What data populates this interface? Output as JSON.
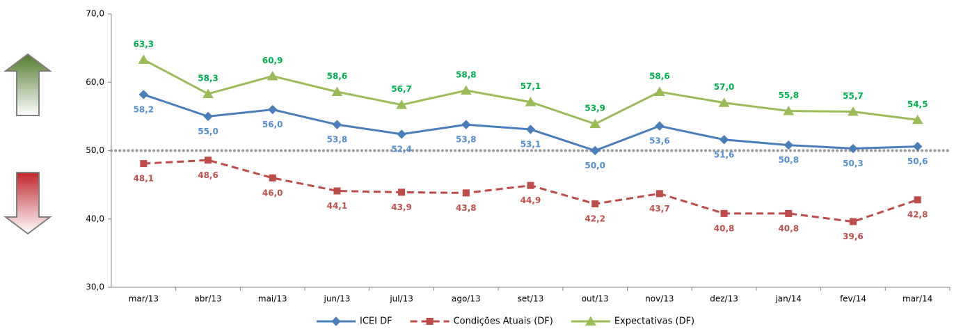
{
  "chart_data": {
    "type": "line",
    "categories": [
      "mar/13",
      "abr/13",
      "mai/13",
      "jun/13",
      "jul/13",
      "ago/13",
      "set/13",
      "out/13",
      "nov/13",
      "dez/13",
      "jan/14",
      "fev/14",
      "mar/14"
    ],
    "series": [
      {
        "name": "ICEI DF",
        "color": "#4a7ebb",
        "label_color": "#558ed5",
        "marker": "diamond",
        "dashed": false,
        "label_position": "below",
        "values": [
          58.2,
          55.0,
          56.0,
          53.8,
          52.4,
          53.8,
          53.1,
          50.0,
          53.6,
          51.6,
          50.8,
          50.3,
          50.6
        ],
        "value_labels": [
          "58,2",
          "55,0",
          "56,0",
          "53,8",
          "52,4",
          "53,8",
          "53,1",
          "50,0",
          "53,6",
          "51,6",
          "50,8",
          "50,3",
          "50,6"
        ]
      },
      {
        "name": "Condições Atuais (DF)",
        "color": "#be4b48",
        "label_color": "#c0504d",
        "marker": "square",
        "dashed": true,
        "label_position": "below",
        "values": [
          48.1,
          48.6,
          46.0,
          44.1,
          43.9,
          43.8,
          44.9,
          42.2,
          43.7,
          40.8,
          40.8,
          39.6,
          42.8
        ],
        "value_labels": [
          "48,1",
          "48,6",
          "46,0",
          "44,1",
          "43,9",
          "43,8",
          "44,9",
          "42,2",
          "43,7",
          "40,8",
          "40,8",
          "39,6",
          "42,8"
        ]
      },
      {
        "name": "Expectativas (DF)",
        "color": "#9bbb59",
        "label_color": "#00b050",
        "marker": "triangle",
        "dashed": false,
        "label_position": "above",
        "values": [
          63.3,
          58.3,
          60.9,
          58.6,
          56.7,
          58.8,
          57.1,
          53.9,
          58.6,
          57.0,
          55.8,
          55.7,
          54.5
        ],
        "value_labels": [
          "63,3",
          "58,3",
          "60,9",
          "58,6",
          "56,7",
          "58,8",
          "57,1",
          "53,9",
          "58,6",
          "57,0",
          "55,8",
          "55,7",
          "54,5"
        ]
      }
    ],
    "ylim": [
      30,
      70
    ],
    "yticks": [
      {
        "value": 30,
        "label": "30,0"
      },
      {
        "value": 40,
        "label": "40,0"
      },
      {
        "value": 50,
        "label": "50,0"
      },
      {
        "value": 60,
        "label": "60,0"
      },
      {
        "value": 70,
        "label": "70,0"
      }
    ],
    "reference_line": 50,
    "grid": false,
    "legend": "bottom"
  }
}
